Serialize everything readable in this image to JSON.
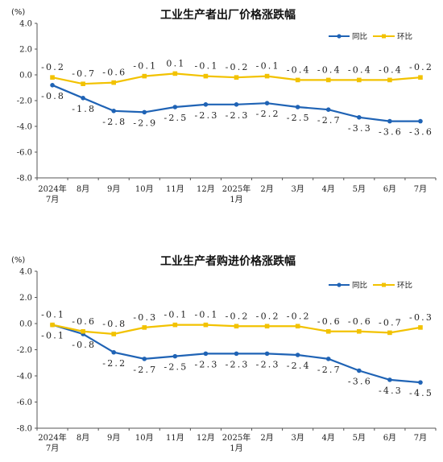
{
  "colors": {
    "yoy": "#1f63b5",
    "mom": "#f2c200",
    "axis": "#555555"
  },
  "chart_data": [
    {
      "type": "line",
      "title": "工业生产者出厂价格涨跌幅",
      "unit": "(%)",
      "ylim": [
        -8.0,
        4.0
      ],
      "yticks": [
        "4.0",
        "2.0",
        "0.0",
        "-2.0",
        "-4.0",
        "-6.0",
        "-8.0"
      ],
      "categories": [
        "2024年\n7月",
        "8月",
        "9月",
        "10月",
        "11月",
        "12月",
        "2025年\n1月",
        "2月",
        "3月",
        "4月",
        "5月",
        "6月",
        "7月"
      ],
      "legend_position": "top-right",
      "series": [
        {
          "name": "同比",
          "values": [
            -0.8,
            -1.8,
            -2.8,
            -2.9,
            -2.5,
            -2.3,
            -2.3,
            -2.2,
            -2.5,
            -2.7,
            -3.3,
            -3.6,
            -3.6
          ],
          "labels": [
            "-0.8",
            "-1.8",
            "-2.8",
            "-2.9",
            "-2.5",
            "-2.3",
            "-2.3",
            "-2.2",
            "-2.5",
            "-2.7",
            "-3.3",
            "-3.6",
            "-3.6"
          ]
        },
        {
          "name": "环比",
          "values": [
            -0.2,
            -0.7,
            -0.6,
            -0.1,
            0.1,
            -0.1,
            -0.2,
            -0.1,
            -0.4,
            -0.4,
            -0.4,
            -0.4,
            -0.2
          ],
          "labels": [
            "-0.2",
            "-0.7",
            "-0.6",
            "-0.1",
            "0.1",
            "-0.1",
            "-0.2",
            "-0.1",
            "-0.4",
            "-0.4",
            "-0.4",
            "-0.4",
            "-0.2"
          ]
        }
      ]
    },
    {
      "type": "line",
      "title": "工业生产者购进价格涨跌幅",
      "unit": "(%)",
      "ylim": [
        -8.0,
        4.0
      ],
      "yticks": [
        "4.0",
        "2.0",
        "0.0",
        "-2.0",
        "-4.0",
        "-6.0",
        "-8.0"
      ],
      "categories": [
        "2024年\n7月",
        "8月",
        "9月",
        "10月",
        "11月",
        "12月",
        "2025年\n1月",
        "2月",
        "3月",
        "4月",
        "5月",
        "6月",
        "7月"
      ],
      "legend_position": "top-right",
      "series": [
        {
          "name": "同比",
          "values": [
            -0.1,
            -0.8,
            -2.2,
            -2.7,
            -2.5,
            -2.3,
            -2.3,
            -2.3,
            -2.4,
            -2.7,
            -3.6,
            -4.3,
            -4.5
          ],
          "labels": [
            "-0.1",
            "-0.8",
            "-2.2",
            "-2.7",
            "-2.5",
            "-2.3",
            "-2.3",
            "-2.3",
            "-2.4",
            "-2.7",
            "-3.6",
            "-4.3",
            "-4.5"
          ]
        },
        {
          "name": "环比",
          "values": [
            -0.1,
            -0.6,
            -0.8,
            -0.3,
            -0.1,
            -0.1,
            -0.2,
            -0.2,
            -0.2,
            -0.6,
            -0.6,
            -0.7,
            -0.3
          ],
          "labels": [
            "-0.1",
            "-0.6",
            "-0.8",
            "-0.3",
            "-0.1",
            "-0.1",
            "-0.2",
            "-0.2",
            "-0.2",
            "-0.6",
            "-0.6",
            "-0.7",
            "-0.3"
          ]
        }
      ]
    }
  ]
}
